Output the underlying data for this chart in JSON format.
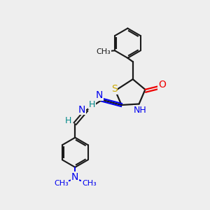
{
  "bg_color": "#eeeeee",
  "bond_color": "#1a1a1a",
  "S_color": "#ccaa00",
  "N_color": "#0000ee",
  "O_color": "#ee0000",
  "N_teal_color": "#008888",
  "H_color": "#008888",
  "font_size": 9,
  "figsize": [
    3.0,
    3.0
  ],
  "dpi": 100,
  "xlim": [
    0,
    10
  ],
  "ylim": [
    0,
    10
  ]
}
